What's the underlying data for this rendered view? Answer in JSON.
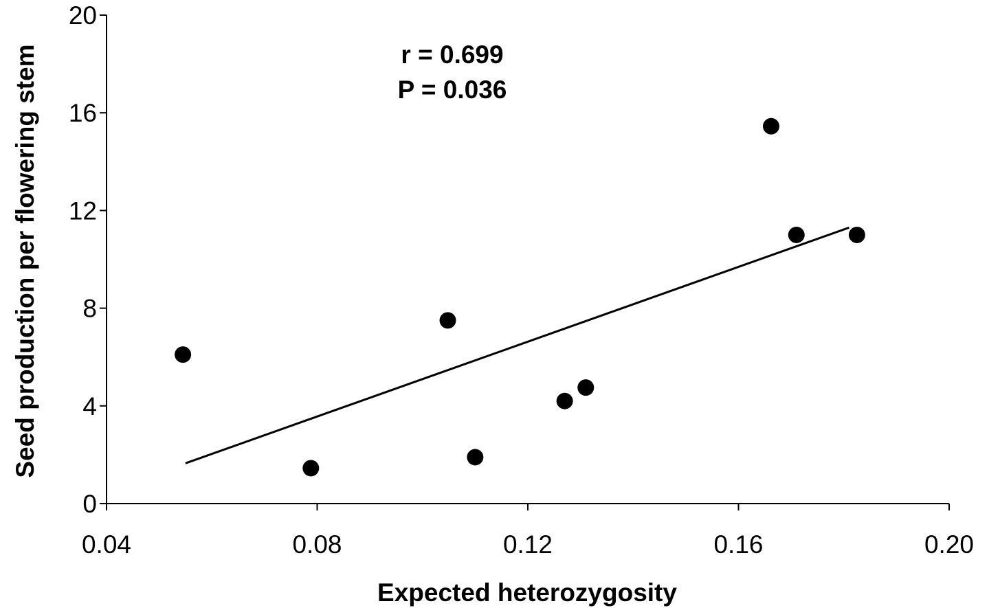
{
  "chart_data": {
    "type": "scatter",
    "title": "",
    "xlabel": "Expected heterozygosity",
    "ylabel": "Seed production per flowering stem",
    "xlim": [
      0.04,
      0.2
    ],
    "ylim": [
      0,
      20
    ],
    "x_ticks": [
      "0.04",
      "0.08",
      "0.12",
      "0.16",
      "0.20"
    ],
    "y_ticks": [
      "0",
      "4",
      "8",
      "12",
      "16",
      "20"
    ],
    "grid": false,
    "legend": "none",
    "series": [
      {
        "x": [
          0.0545,
          0.0788,
          0.1048,
          0.11,
          0.127,
          0.131,
          0.1662,
          0.171,
          0.1825
        ],
        "y": [
          6.1,
          1.45,
          7.5,
          1.9,
          4.2,
          4.75,
          15.45,
          11.0,
          11.0
        ],
        "color": "#000000"
      }
    ],
    "trendline": {
      "x": [
        0.055,
        0.181
      ],
      "y": [
        1.65,
        11.3
      ]
    },
    "annotations": [
      "r = 0.699",
      "P = 0.036"
    ]
  }
}
